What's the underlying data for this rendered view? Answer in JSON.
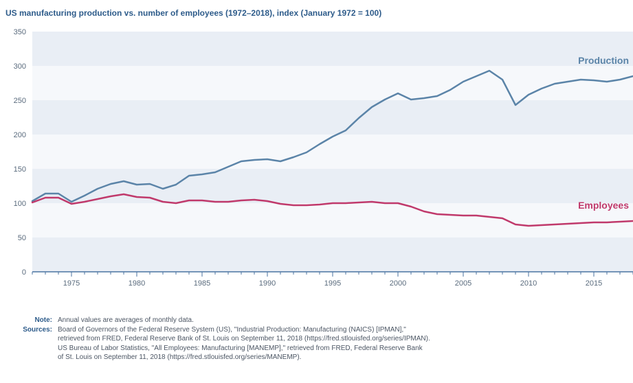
{
  "chart_data": {
    "type": "line",
    "title": "US manufacturing production vs. number of employees (1972–2018), index (January 1972 = 100)",
    "xlabel": "",
    "ylabel": "",
    "xlim": [
      1972,
      2018
    ],
    "ylim": [
      0,
      350
    ],
    "x_ticks": [
      1975,
      1980,
      1985,
      1990,
      1995,
      2000,
      2005,
      2010,
      2015
    ],
    "y_ticks": [
      0,
      50,
      100,
      150,
      200,
      250,
      300,
      350
    ],
    "grid": "horizontal alternating bands",
    "legend": "inline labels at right",
    "x": [
      1972,
      1973,
      1974,
      1975,
      1976,
      1977,
      1978,
      1979,
      1980,
      1981,
      1982,
      1983,
      1984,
      1985,
      1986,
      1987,
      1988,
      1989,
      1990,
      1991,
      1992,
      1993,
      1994,
      1995,
      1996,
      1997,
      1998,
      1999,
      2000,
      2001,
      2002,
      2003,
      2004,
      2005,
      2006,
      2007,
      2008,
      2009,
      2010,
      2011,
      2012,
      2013,
      2014,
      2015,
      2016,
      2017,
      2018
    ],
    "series": [
      {
        "name": "Production",
        "color": "#5b84a8",
        "values": [
          103,
          114,
          114,
          102,
          111,
          121,
          128,
          132,
          127,
          128,
          121,
          127,
          140,
          142,
          145,
          153,
          161,
          163,
          164,
          161,
          167,
          174,
          186,
          197,
          206,
          224,
          240,
          251,
          260,
          251,
          253,
          256,
          265,
          277,
          285,
          293,
          280,
          243,
          258,
          267,
          274,
          277,
          280,
          279,
          277,
          280,
          285
        ]
      },
      {
        "name": "Employees",
        "color": "#c0396b",
        "values": [
          101,
          108,
          108,
          99,
          102,
          106,
          110,
          113,
          109,
          108,
          102,
          100,
          104,
          104,
          102,
          102,
          104,
          105,
          103,
          99,
          97,
          97,
          98,
          100,
          100,
          101,
          102,
          100,
          100,
          95,
          88,
          84,
          83,
          82,
          82,
          80,
          78,
          69,
          67,
          68,
          69,
          70,
          71,
          72,
          72,
          73,
          74
        ]
      }
    ]
  },
  "notes": {
    "note_key": "Note:",
    "note_text": "Annual values are averages of monthly data.",
    "sources_key": "Sources:",
    "sources_lines": [
      "Board of Governors of the Federal Reserve System (US), \"Industrial Production: Manufacturing (NAICS) [IPMAN],\"",
      "retrieved from FRED, Federal Reserve Bank of St. Louis on September 11, 2018 (https://fred.stlouisfed.org/series/IPMAN).",
      "US Bureau of Labor Statistics, \"All Employees: Manufacturing [MANEMP],\" retrieved from FRED, Federal Reserve Bank",
      "of St. Louis on September 11, 2018 (https://fred.stlouisfed.org/series/MANEMP)."
    ]
  }
}
